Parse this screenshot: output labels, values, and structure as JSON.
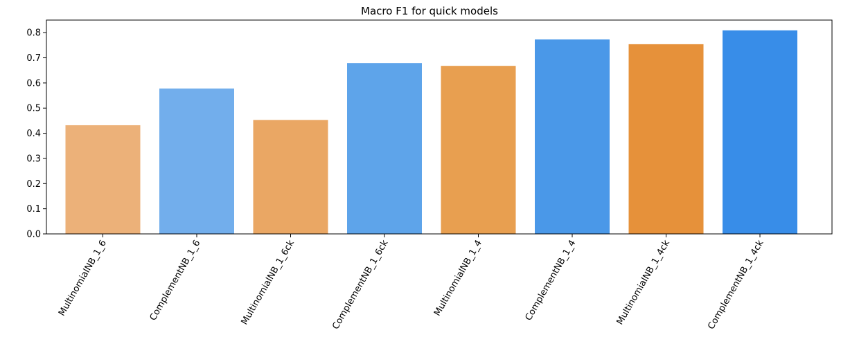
{
  "chart_data": {
    "type": "bar",
    "title": "Macro F1 for quick models",
    "xlabel": "",
    "ylabel": "",
    "categories": [
      "MultinomialNB_1_6",
      "ComplementNB_1_6",
      "MultinomialNB_1_6ck",
      "ComplementNB_1_6ck",
      "MultinomialNB_1_4",
      "ComplementNB_1_4",
      "MultinomialNB_1_4ck",
      "ComplementNB_1_4ck"
    ],
    "values": [
      0.432,
      0.578,
      0.453,
      0.679,
      0.668,
      0.773,
      0.754,
      0.809
    ],
    "colors": [
      "#ecb179",
      "#72aeec",
      "#eaa764",
      "#5ea4ea",
      "#e89f50",
      "#4a98e8",
      "#e6913a",
      "#388de8"
    ],
    "ylim": [
      0,
      0.85
    ],
    "yticks": [
      "0.0",
      "0.1",
      "0.2",
      "0.3",
      "0.4",
      "0.5",
      "0.6",
      "0.7",
      "0.8"
    ],
    "grid": false,
    "legend": "none",
    "xtick_rotation": "60 degrees"
  }
}
